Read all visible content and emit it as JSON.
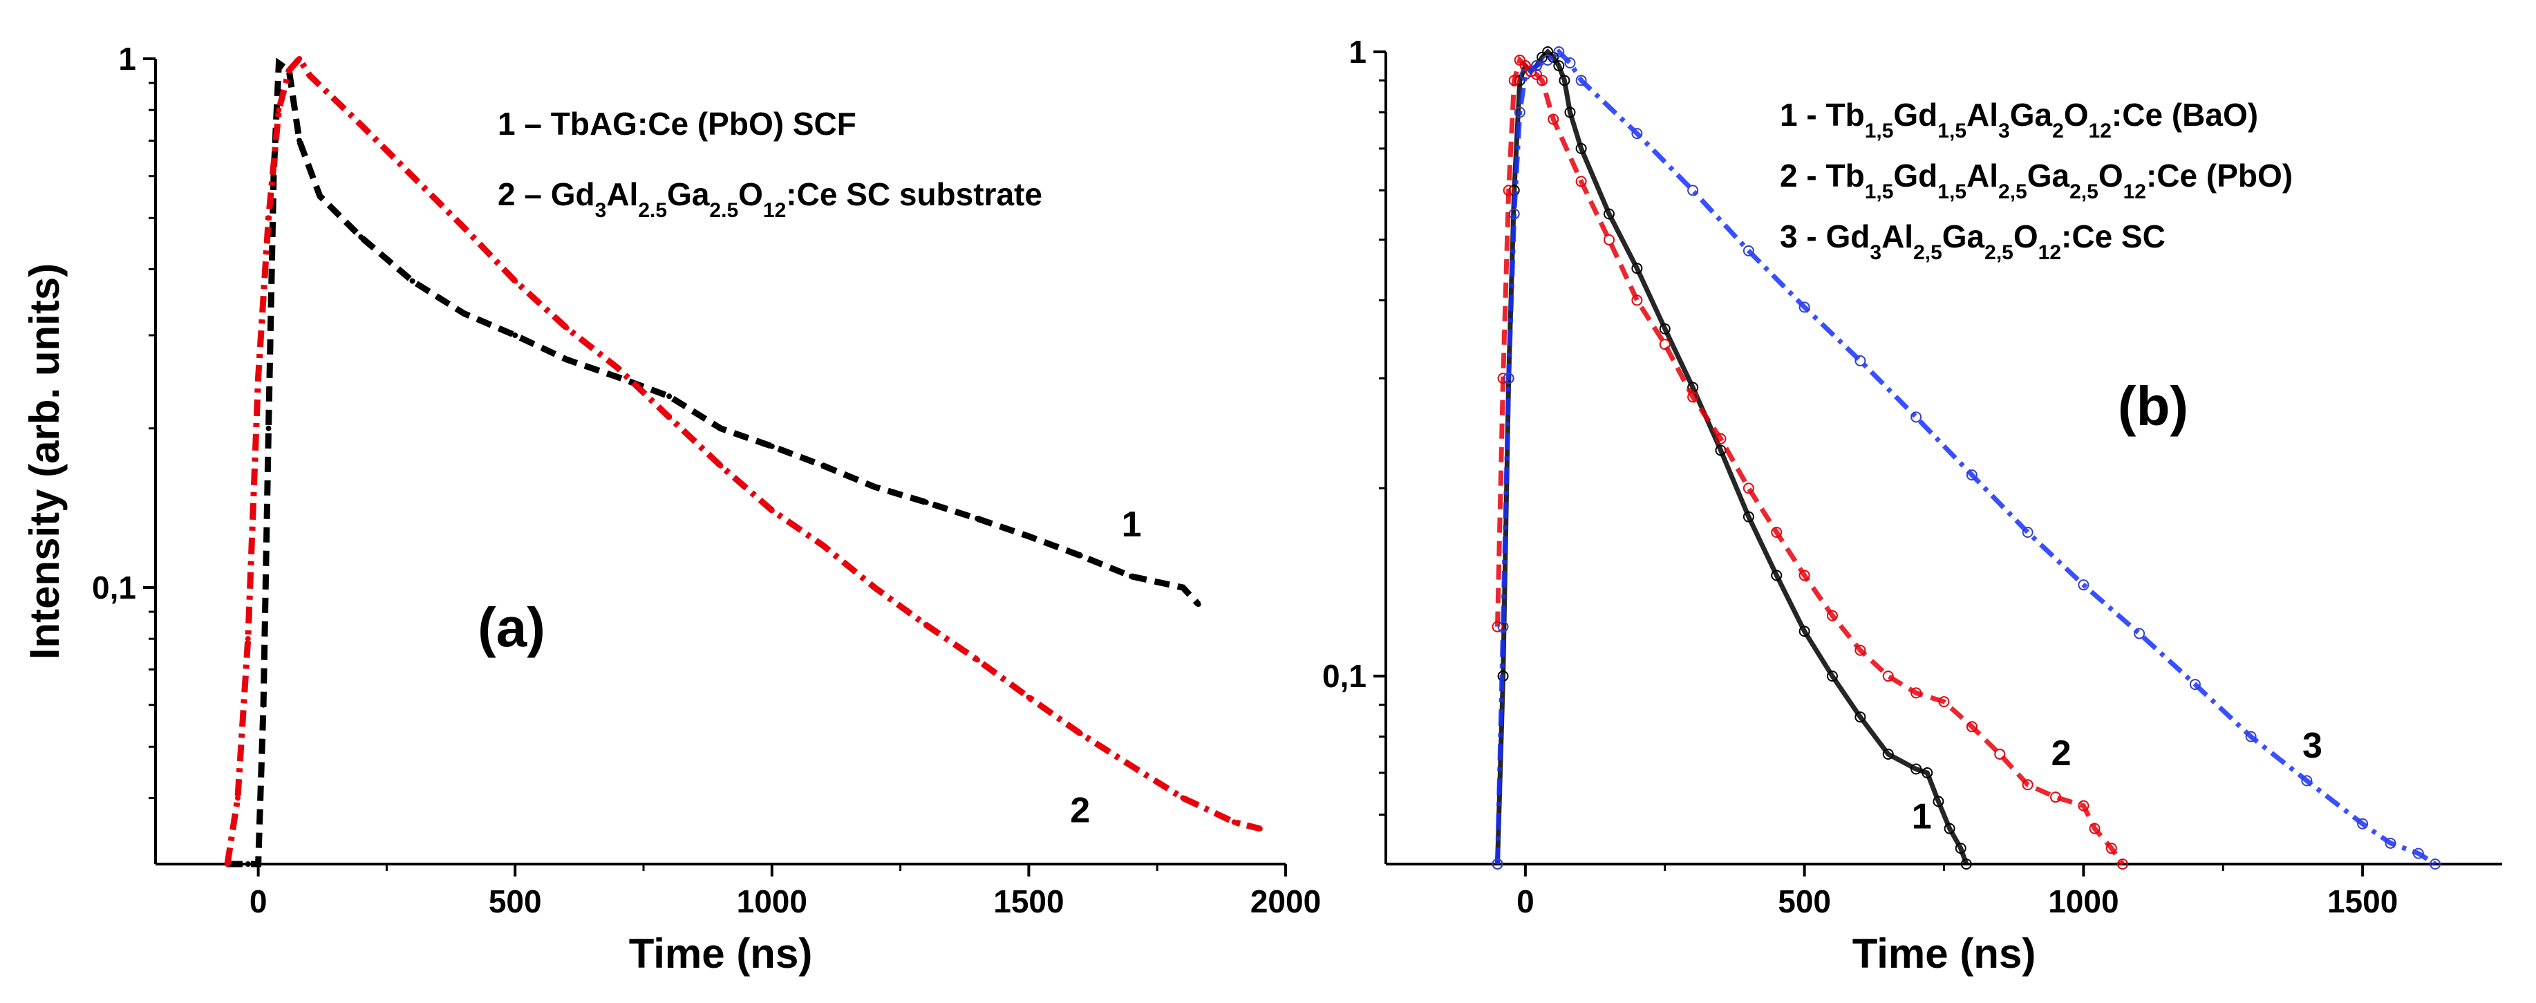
{
  "chart_data": [
    {
      "id": "a",
      "type": "line",
      "y_scale": "log",
      "panel_label": "(a)",
      "xlabel": "Time (ns)",
      "ylabel": "Intensity (arb. units)",
      "xlim": [
        -200,
        2000
      ],
      "ylim": [
        0.03,
        1
      ],
      "x_ticks": [
        {
          "value": 0,
          "label": "0"
        },
        {
          "value": 500,
          "label": "500"
        },
        {
          "value": 1000,
          "label": "1000"
        },
        {
          "value": 1500,
          "label": "1500"
        },
        {
          "value": 2000,
          "label": "2000"
        }
      ],
      "y_ticks": [
        {
          "value": 1,
          "label": "1"
        },
        {
          "value": 0.1,
          "label": "0,1"
        }
      ],
      "legend": [
        {
          "num": "1",
          "dash": "–",
          "parts": [
            {
              "t": "TbAG:Ce (PbO) SCF"
            }
          ]
        },
        {
          "num": "2",
          "dash": "–",
          "parts": [
            {
              "t": "Gd"
            },
            {
              "t": "3",
              "sub": true
            },
            {
              "t": "Al"
            },
            {
              "t": "2.5",
              "sub": true
            },
            {
              "t": "Ga"
            },
            {
              "t": "2.5",
              "sub": true
            },
            {
              "t": "O"
            },
            {
              "t": "12",
              "sub": true
            },
            {
              "t": ":Ce SC substrate"
            }
          ]
        }
      ],
      "series": [
        {
          "name": "1",
          "color": "#000000",
          "style": "dash",
          "x": [
            -60,
            -20,
            0,
            10,
            20,
            30,
            40,
            60,
            80,
            120,
            200,
            300,
            400,
            500,
            600,
            700,
            800,
            900,
            1000,
            1100,
            1200,
            1300,
            1400,
            1500,
            1600,
            1700,
            1800,
            1830
          ],
          "y": [
            0.03,
            0.03,
            0.03,
            0.06,
            0.2,
            0.6,
            0.98,
            0.95,
            0.7,
            0.55,
            0.46,
            0.38,
            0.33,
            0.3,
            0.27,
            0.25,
            0.23,
            0.2,
            0.185,
            0.17,
            0.155,
            0.145,
            0.135,
            0.125,
            0.115,
            0.105,
            0.1,
            0.093
          ]
        },
        {
          "name": "2",
          "color": "#e8000b",
          "style": "dashdot",
          "x": [
            -60,
            -40,
            -20,
            0,
            20,
            40,
            60,
            80,
            100,
            200,
            300,
            400,
            500,
            600,
            700,
            800,
            900,
            1000,
            1100,
            1200,
            1300,
            1400,
            1500,
            1600,
            1700,
            1800,
            1900,
            1950
          ],
          "y": [
            0.03,
            0.04,
            0.08,
            0.25,
            0.5,
            0.8,
            0.95,
            1.0,
            0.93,
            0.75,
            0.6,
            0.48,
            0.38,
            0.31,
            0.26,
            0.21,
            0.17,
            0.14,
            0.12,
            0.1,
            0.085,
            0.073,
            0.062,
            0.053,
            0.046,
            0.04,
            0.036,
            0.035
          ]
        }
      ],
      "curve_labels": [
        {
          "text": "1",
          "x": 1700,
          "y": 0.125
        },
        {
          "text": "2",
          "x": 1600,
          "y": 0.036
        }
      ]
    },
    {
      "id": "b",
      "type": "scatter",
      "y_scale": "log",
      "panel_label": "(b)",
      "xlabel": "Time (ns)",
      "ylabel": "",
      "xlim": [
        -250,
        1750
      ],
      "ylim": [
        0.05,
        1
      ],
      "x_ticks": [
        {
          "value": 0,
          "label": "0"
        },
        {
          "value": 500,
          "label": "500"
        },
        {
          "value": 1000,
          "label": "1000"
        },
        {
          "value": 1500,
          "label": "1500"
        }
      ],
      "y_ticks": [
        {
          "value": 1,
          "label": "1"
        },
        {
          "value": 0.1,
          "label": "0,1"
        }
      ],
      "legend": [
        {
          "num": "1",
          "dash": "-",
          "parts": [
            {
              "t": "Tb"
            },
            {
              "t": "1,5",
              "sub": true
            },
            {
              "t": "Gd"
            },
            {
              "t": "1,5",
              "sub": true
            },
            {
              "t": "Al"
            },
            {
              "t": "3",
              "sub": true
            },
            {
              "t": "Ga"
            },
            {
              "t": "2",
              "sub": true
            },
            {
              "t": "O"
            },
            {
              "t": "12",
              "sub": true
            },
            {
              "t": ":Ce (BaO)"
            }
          ]
        },
        {
          "num": "2",
          "dash": "-",
          "parts": [
            {
              "t": "Tb"
            },
            {
              "t": "1,5",
              "sub": true
            },
            {
              "t": "Gd"
            },
            {
              "t": "1,5",
              "sub": true
            },
            {
              "t": "Al"
            },
            {
              "t": "2,5",
              "sub": true
            },
            {
              "t": "Ga"
            },
            {
              "t": "2,5",
              "sub": true
            },
            {
              "t": "O"
            },
            {
              "t": "12",
              "sub": true
            },
            {
              "t": ":Ce (PbO)"
            }
          ]
        },
        {
          "num": "3",
          "dash": "-",
          "parts": [
            {
              "t": "Gd"
            },
            {
              "t": "3",
              "sub": true
            },
            {
              "t": "Al"
            },
            {
              "t": "2,5",
              "sub": true
            },
            {
              "t": "Ga"
            },
            {
              "t": "2,5",
              "sub": true
            },
            {
              "t": "O"
            },
            {
              "t": "12",
              "sub": true
            },
            {
              "t": ":Ce SC"
            }
          ]
        }
      ],
      "series": [
        {
          "name": "1",
          "color": "#000000",
          "fit_color": "#000000",
          "fit_style": "solid",
          "x": [
            -50,
            -40,
            -30,
            -20,
            -10,
            0,
            10,
            20,
            30,
            40,
            50,
            60,
            70,
            80,
            100,
            150,
            200,
            250,
            300,
            350,
            400,
            450,
            500,
            550,
            600,
            650,
            700,
            720,
            740,
            760,
            780,
            790
          ],
          "y": [
            0.05,
            0.1,
            0.3,
            0.6,
            0.9,
            0.95,
            0.93,
            0.95,
            0.98,
            1.0,
            0.98,
            0.95,
            0.9,
            0.8,
            0.7,
            0.55,
            0.45,
            0.36,
            0.29,
            0.23,
            0.18,
            0.145,
            0.118,
            0.1,
            0.086,
            0.075,
            0.071,
            0.07,
            0.063,
            0.057,
            0.053,
            0.05
          ]
        },
        {
          "name": "2",
          "color": "#e8000b",
          "fit_color": "#e8000b",
          "fit_style": "dash",
          "x": [
            -50,
            -40,
            -30,
            -20,
            -10,
            0,
            10,
            20,
            30,
            50,
            100,
            150,
            200,
            250,
            300,
            350,
            400,
            450,
            500,
            550,
            600,
            650,
            700,
            750,
            800,
            850,
            900,
            950,
            1000,
            1020,
            1050,
            1070
          ],
          "y": [
            0.12,
            0.3,
            0.6,
            0.9,
            0.97,
            0.95,
            0.93,
            0.92,
            0.9,
            0.78,
            0.62,
            0.5,
            0.4,
            0.34,
            0.28,
            0.24,
            0.2,
            0.17,
            0.145,
            0.125,
            0.11,
            0.1,
            0.094,
            0.091,
            0.083,
            0.075,
            0.067,
            0.064,
            0.062,
            0.057,
            0.053,
            0.05
          ]
        },
        {
          "name": "3",
          "color": "#3440c8",
          "fit_color": "#1530ff",
          "fit_style": "dashdot",
          "x": [
            -50,
            -40,
            -30,
            -20,
            -10,
            0,
            20,
            40,
            60,
            80,
            100,
            200,
            300,
            400,
            500,
            600,
            700,
            800,
            900,
            1000,
            1100,
            1200,
            1300,
            1400,
            1500,
            1550,
            1600,
            1630
          ],
          "y": [
            0.05,
            0.12,
            0.3,
            0.55,
            0.8,
            0.92,
            0.95,
            0.97,
            1.0,
            0.96,
            0.9,
            0.74,
            0.6,
            0.48,
            0.39,
            0.32,
            0.26,
            0.21,
            0.17,
            0.14,
            0.117,
            0.097,
            0.08,
            0.068,
            0.058,
            0.054,
            0.052,
            0.05
          ]
        }
      ],
      "curve_labels": [
        {
          "text": "1",
          "x": 710,
          "y": 0.057
        },
        {
          "text": "2",
          "x": 960,
          "y": 0.072
        },
        {
          "text": "3",
          "x": 1410,
          "y": 0.074
        }
      ]
    }
  ]
}
